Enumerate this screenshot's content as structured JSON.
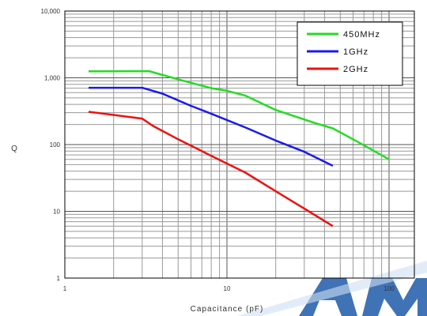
{
  "chart_data": {
    "type": "line",
    "title": "",
    "xlabel": "Capacitance (pF)",
    "ylabel": "Q",
    "x_scale": "log",
    "y_scale": "log",
    "xlim": [
      1,
      100
    ],
    "ylim": [
      1,
      10000
    ],
    "grid": true,
    "legend_position": "top-right",
    "x_ticks": [
      {
        "value": 1,
        "label": "1"
      },
      {
        "value": 10,
        "label": "10"
      },
      {
        "value": 100,
        "label": "100"
      }
    ],
    "y_ticks": [
      {
        "value": 1,
        "label": "1"
      },
      {
        "value": 10,
        "label": "10"
      },
      {
        "value": 100,
        "label": "100"
      },
      {
        "value": 1000,
        "label": "1,000"
      },
      {
        "value": 10000,
        "label": "10,000"
      }
    ],
    "series": [
      {
        "name": "450MHz",
        "color": "#22dd22",
        "points": [
          [
            1.4,
            1250
          ],
          [
            3.3,
            1260
          ],
          [
            5.0,
            950
          ],
          [
            8.0,
            700
          ],
          [
            10.0,
            640
          ],
          [
            13.0,
            540
          ],
          [
            20.0,
            330
          ],
          [
            35.0,
            210
          ],
          [
            45.0,
            175
          ],
          [
            60.0,
            120
          ],
          [
            100.0,
            60
          ]
        ]
      },
      {
        "name": "1GHz",
        "color": "#1a1aee",
        "points": [
          [
            1.4,
            710
          ],
          [
            3.0,
            710
          ],
          [
            4.0,
            580
          ],
          [
            6.0,
            380
          ],
          [
            8.0,
            290
          ],
          [
            13.0,
            180
          ],
          [
            20.0,
            115
          ],
          [
            30.0,
            78
          ],
          [
            45.0,
            48
          ]
        ]
      },
      {
        "name": "2GHz",
        "color": "#ee1111",
        "points": [
          [
            1.4,
            310
          ],
          [
            3.0,
            245
          ],
          [
            3.5,
            190
          ],
          [
            5.0,
            120
          ],
          [
            8.0,
            68
          ],
          [
            13.0,
            38
          ],
          [
            20.0,
            20
          ],
          [
            30.0,
            11
          ],
          [
            45.0,
            6
          ]
        ]
      }
    ]
  }
}
